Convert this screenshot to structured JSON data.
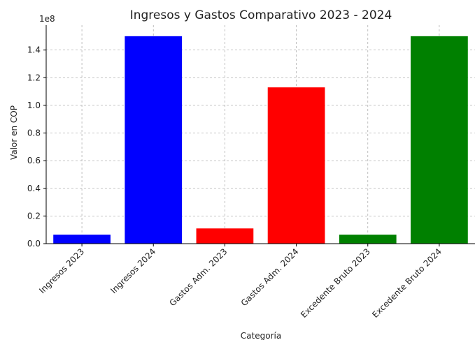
{
  "chart_data": {
    "type": "bar",
    "title": "Ingresos y Gastos Comparativo 2023 - 2024",
    "xlabel": "Categoría",
    "ylabel": "Valor en COP",
    "offset_label": "1e8",
    "ylim": [
      0,
      1.58
    ],
    "yticks": [
      "0.0",
      "0.2",
      "0.4",
      "0.6",
      "0.8",
      "1.0",
      "1.2",
      "1.4"
    ],
    "grid": true,
    "categories": [
      "Ingresos 2023",
      "Ingresos 2024",
      "Gastos Adm. 2023",
      "Gastos Adm. 2024",
      "Excedente Bruto 2023",
      "Excedente Bruto 2024"
    ],
    "values": [
      0.065,
      1.5,
      0.11,
      1.13,
      0.065,
      1.5
    ],
    "colors": [
      "#0000ff",
      "#0000ff",
      "#ff0000",
      "#ff0000",
      "#008000",
      "#008000"
    ]
  }
}
